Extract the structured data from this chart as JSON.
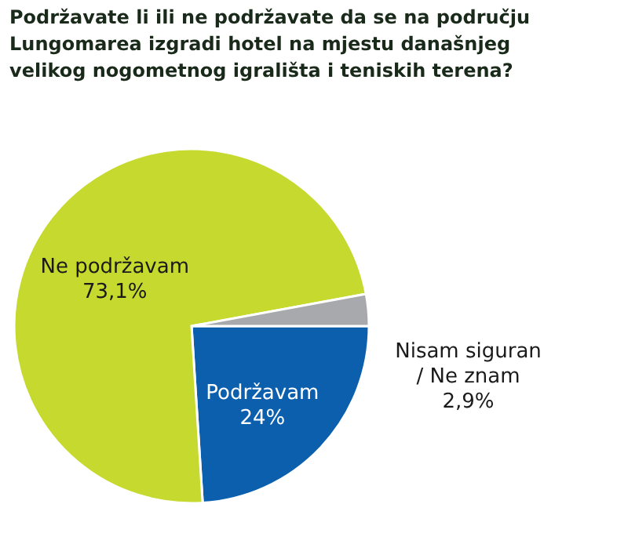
{
  "chart_data": {
    "type": "pie",
    "title": "Podržavate li ili ne podržavate da se na području Lungomarea izgradi hotel na mjestu današnjeg velikog nogometnog igrališta i teniskih terena?",
    "categories": [
      "Podržavam",
      "Ne podržavam",
      "Nisam siguran / Ne znam"
    ],
    "values": [
      24,
      73.1,
      2.9
    ],
    "value_labels": [
      "24%",
      "73,1%",
      "2,9%"
    ],
    "colors": [
      "#0b5fad",
      "#c6d92e",
      "#a7a9ac"
    ]
  }
}
